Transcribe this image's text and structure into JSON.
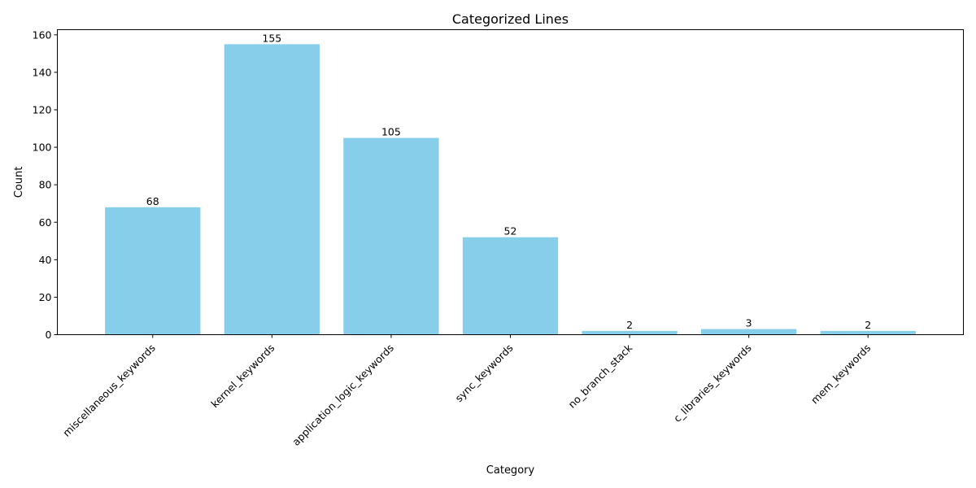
{
  "chart_data": {
    "type": "bar",
    "title": "Categorized Lines",
    "xlabel": "Category",
    "ylabel": "Count",
    "categories": [
      "miscellaneous_keywords",
      "kernel_keywords",
      "application_logic_keywords",
      "sync_keywords",
      "no_branch_stack",
      "c_libraries_keywords",
      "mem_keywords"
    ],
    "values": [
      68,
      155,
      105,
      52,
      2,
      3,
      2
    ],
    "ylim": [
      0,
      162.75
    ],
    "yticks": [
      0,
      20,
      40,
      60,
      80,
      100,
      120,
      140,
      160
    ],
    "bar_color": "#87ceeb",
    "grid": false,
    "legend": "none"
  }
}
